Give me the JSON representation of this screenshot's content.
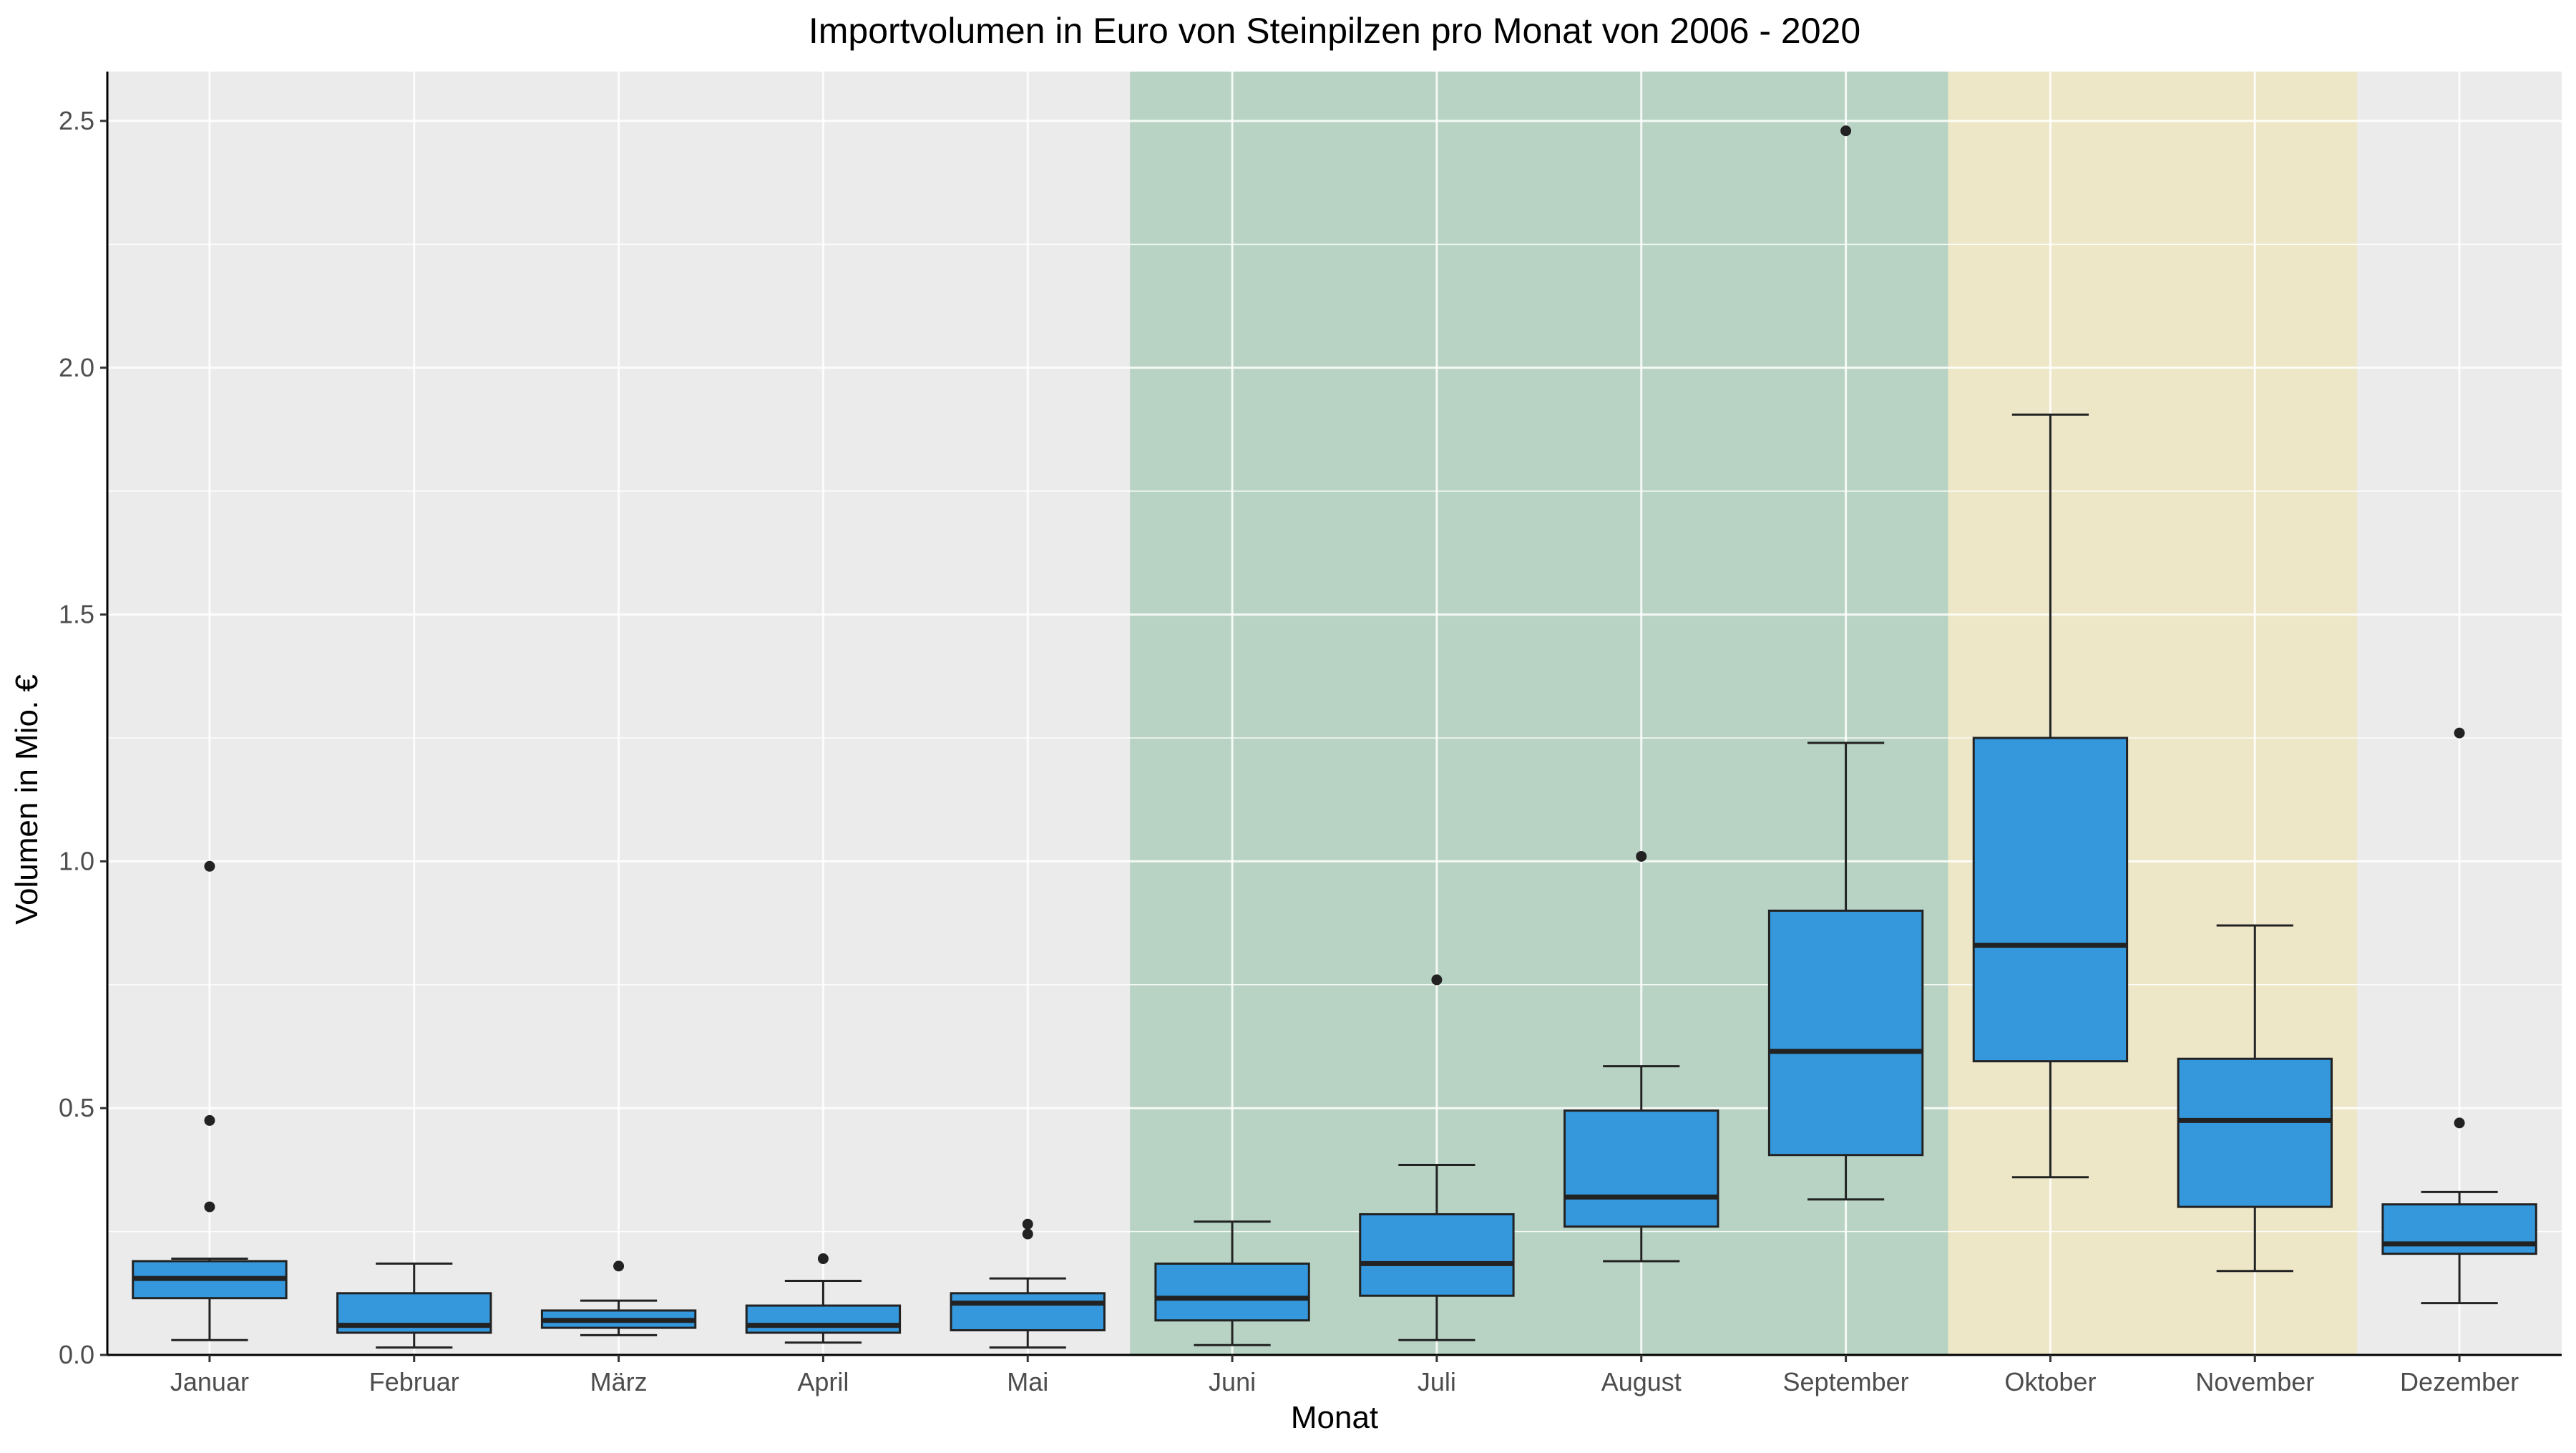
{
  "chart_data": {
    "type": "boxplot",
    "title": "Importvolumen in Euro von Steinpilzen pro Monat von 2006 - 2020",
    "xlabel": "Monat",
    "ylabel": "Volumen in Mio. €",
    "ylim": [
      0,
      2.6
    ],
    "yticks": [
      0.0,
      0.5,
      1.0,
      1.5,
      2.0,
      2.5
    ],
    "ytick_labels": [
      "0.0",
      "0.5",
      "1.0",
      "1.5",
      "2.0",
      "2.5"
    ],
    "grid": true,
    "colors": {
      "box_fill": "#3598dc",
      "panel_bg": "#ebebeb",
      "grid": "#ffffff",
      "season_green": "#b8d3c4",
      "season_yellow": "#ede7c8",
      "outline": "#222222",
      "text": "#000000",
      "tick_text": "#4d4d4d"
    },
    "highlight_bands": [
      {
        "from_category": "Juni",
        "to_category": "September",
        "color": "#b8d3c4"
      },
      {
        "from_category": "Oktober",
        "to_category": "November",
        "color": "#ede7c8"
      }
    ],
    "categories": [
      "Januar",
      "Februar",
      "März",
      "April",
      "Mai",
      "Juni",
      "Juli",
      "August",
      "September",
      "Oktober",
      "November",
      "Dezember"
    ],
    "boxes": [
      {
        "category": "Januar",
        "min": 0.03,
        "q1": 0.115,
        "median": 0.155,
        "q3": 0.19,
        "max": 0.195,
        "outliers": [
          0.99,
          0.475,
          0.3
        ]
      },
      {
        "category": "Februar",
        "min": 0.015,
        "q1": 0.045,
        "median": 0.06,
        "q3": 0.125,
        "max": 0.185,
        "outliers": []
      },
      {
        "category": "März",
        "min": 0.04,
        "q1": 0.055,
        "median": 0.07,
        "q3": 0.09,
        "max": 0.11,
        "outliers": [
          0.18
        ]
      },
      {
        "category": "April",
        "min": 0.025,
        "q1": 0.045,
        "median": 0.06,
        "q3": 0.1,
        "max": 0.15,
        "outliers": [
          0.195
        ]
      },
      {
        "category": "Mai",
        "min": 0.015,
        "q1": 0.05,
        "median": 0.105,
        "q3": 0.125,
        "max": 0.155,
        "outliers": [
          0.265,
          0.245
        ]
      },
      {
        "category": "Juni",
        "min": 0.02,
        "q1": 0.07,
        "median": 0.115,
        "q3": 0.185,
        "max": 0.27,
        "outliers": []
      },
      {
        "category": "Juli",
        "min": 0.03,
        "q1": 0.12,
        "median": 0.185,
        "q3": 0.285,
        "max": 0.385,
        "outliers": [
          0.76
        ]
      },
      {
        "category": "August",
        "min": 0.19,
        "q1": 0.26,
        "median": 0.32,
        "q3": 0.495,
        "max": 0.585,
        "outliers": [
          1.01
        ]
      },
      {
        "category": "September",
        "min": 0.315,
        "q1": 0.405,
        "median": 0.615,
        "q3": 0.9,
        "max": 1.24,
        "outliers": [
          2.48
        ]
      },
      {
        "category": "Oktober",
        "min": 0.36,
        "q1": 0.595,
        "median": 0.83,
        "q3": 1.25,
        "max": 1.905,
        "outliers": []
      },
      {
        "category": "November",
        "min": 0.17,
        "q1": 0.3,
        "median": 0.475,
        "q3": 0.6,
        "max": 0.87,
        "outliers": []
      },
      {
        "category": "Dezember",
        "min": 0.105,
        "q1": 0.205,
        "median": 0.225,
        "q3": 0.305,
        "max": 0.33,
        "outliers": [
          1.26,
          0.47
        ]
      }
    ]
  }
}
